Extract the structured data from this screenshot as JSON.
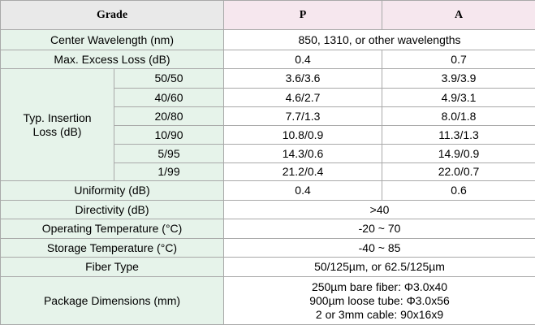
{
  "table": {
    "header": [
      "Grade",
      "P",
      "A"
    ],
    "rows": [
      {
        "label": "Center Wavelength (nm)",
        "value": "850, 1310, or other wavelengths"
      },
      {
        "label": "Max. Excess Loss (dB)",
        "values": [
          "0.4",
          "0.7"
        ]
      },
      {
        "label": "Typ. Insertion Loss (dB)",
        "sub_rows": [
          {
            "ratio": "50/50",
            "values": [
              "3.6/3.6",
              "3.9/3.9"
            ]
          },
          {
            "ratio": "40/60",
            "values": [
              "4.6/2.7",
              "4.9/3.1"
            ]
          },
          {
            "ratio": "20/80",
            "values": [
              "7.7/1.3",
              "8.0/1.8"
            ]
          },
          {
            "ratio": "10/90",
            "values": [
              "10.8/0.9",
              "11.3/1.3"
            ]
          },
          {
            "ratio": "5/95",
            "values": [
              "14.3/0.6",
              "14.9/0.9"
            ]
          },
          {
            "ratio": "1/99",
            "values": [
              "21.2/0.4",
              "22.0/0.7"
            ]
          }
        ]
      },
      {
        "label": "Uniformity (dB)",
        "values": [
          "0.4",
          "0.6"
        ]
      },
      {
        "label": "Directivity (dB)",
        "value": ">40"
      },
      {
        "label": "Operating Temperature (°C)",
        "value": "-20 ~ 70"
      },
      {
        "label": "Storage Temperature (°C)",
        "value": "-40 ~ 85"
      },
      {
        "label": "Fiber Type",
        "value": "50/125µm, or 62.5/125µm"
      },
      {
        "label": "Package Dimensions (mm)",
        "lines": [
          "250µm bare fiber:  Φ3.0x40",
          "900µm loose tube: Φ3.0x56",
          "2 or 3mm cable: 90x16x9"
        ]
      }
    ]
  }
}
